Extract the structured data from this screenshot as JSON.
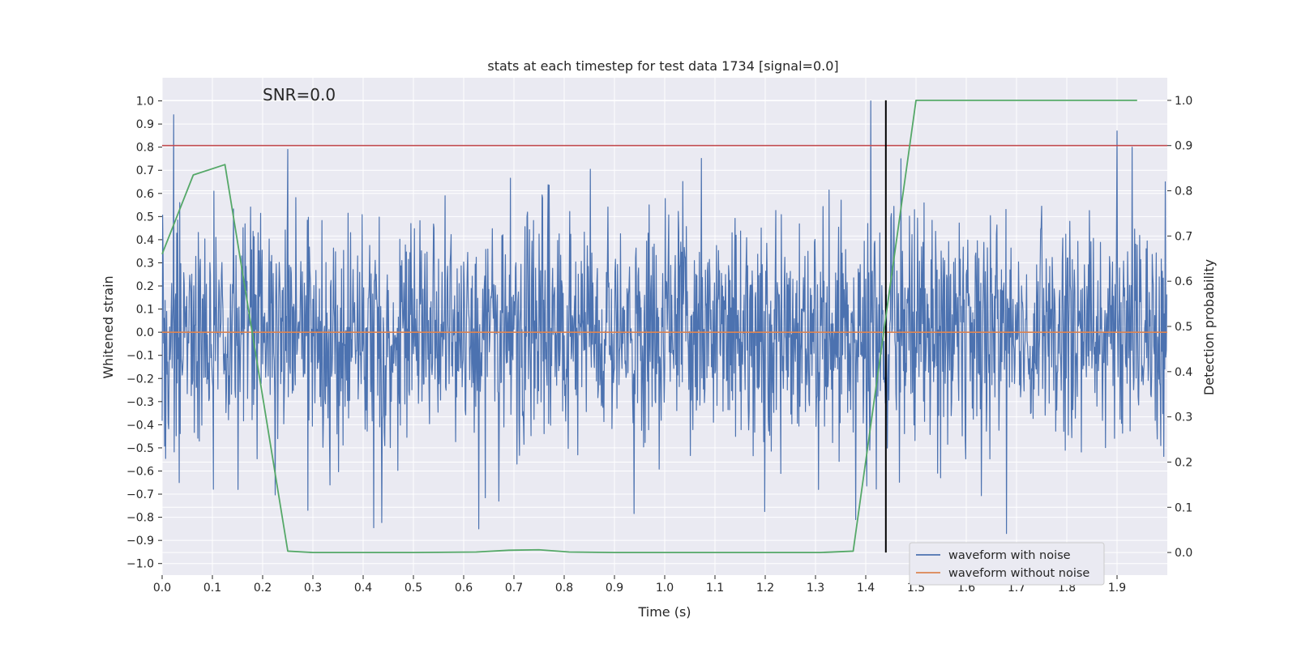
{
  "chart_data": {
    "type": "line",
    "title": "stats at each timestep for test data 1734 [signal=0.0]",
    "annotation": "SNR=0.0",
    "xlabel": "Time (s)",
    "ylabel_left": "Whitened strain",
    "ylabel_right": "Detection probability",
    "xlim": [
      0.0,
      2.0
    ],
    "ylim_left": [
      -1.05,
      1.1
    ],
    "ylim_right": [
      -0.05,
      1.05
    ],
    "x_ticks": [
      "0.0",
      "0.1",
      "0.2",
      "0.3",
      "0.4",
      "0.5",
      "0.6",
      "0.7",
      "0.8",
      "0.9",
      "1.0",
      "1.1",
      "1.2",
      "1.3",
      "1.4",
      "1.5",
      "1.6",
      "1.7",
      "1.8",
      "1.9"
    ],
    "y_ticks_left": [
      "1.0",
      "0.9",
      "0.8",
      "0.7",
      "0.6",
      "0.5",
      "0.4",
      "0.3",
      "0.2",
      "0.1",
      "0.0",
      "−0.1",
      "−0.2",
      "−0.3",
      "−0.4",
      "−0.5",
      "−0.6",
      "−0.7",
      "−0.8",
      "−0.9",
      "−1.0"
    ],
    "y_ticks_right": [
      "1.0",
      "0.9",
      "0.8",
      "0.7",
      "0.6",
      "0.5",
      "0.4",
      "0.3",
      "0.2",
      "0.1",
      "0.0"
    ],
    "grid": true,
    "legend_position": "lower-right",
    "series": [
      {
        "name": "waveform with noise",
        "axis": "left",
        "color": "#4c72b0",
        "description": "whitened noise, approx. zero-mean, std ~0.25, range -1.0 to 1.0",
        "spikes": [
          {
            "x": 0.023,
            "y": 0.94
          },
          {
            "x": 0.034,
            "y": -0.65
          },
          {
            "x": 0.103,
            "y": 0.61
          },
          {
            "x": 0.25,
            "y": 0.79
          },
          {
            "x": 0.29,
            "y": -0.77
          },
          {
            "x": 0.63,
            "y": -0.85
          },
          {
            "x": 0.67,
            "y": -0.73
          },
          {
            "x": 1.38,
            "y": -0.81
          },
          {
            "x": 1.41,
            "y": 1.0
          },
          {
            "x": 1.47,
            "y": 0.75
          },
          {
            "x": 1.68,
            "y": -0.87
          },
          {
            "x": 1.9,
            "y": 0.87
          },
          {
            "x": 1.93,
            "y": 0.8
          }
        ]
      },
      {
        "name": "waveform without noise",
        "axis": "left",
        "color": "#dd8452",
        "x": [
          0.0,
          2.0
        ],
        "y": [
          0.0,
          0.0
        ]
      },
      {
        "name": "detection probability",
        "axis": "right",
        "color": "#55a868",
        "x": [
          0.0,
          0.062,
          0.125,
          0.25,
          0.3,
          0.4,
          0.5,
          0.625,
          0.69,
          0.75,
          0.81,
          0.9,
          1.0,
          1.1,
          1.2,
          1.31,
          1.375,
          1.5,
          1.94
        ],
        "y": [
          0.66,
          0.835,
          0.858,
          0.003,
          0.0,
          0.0,
          0.0,
          0.001,
          0.005,
          0.006,
          0.001,
          0.0,
          0.0,
          0.0,
          0.0,
          0.0,
          0.003,
          1.0,
          1.0
        ]
      }
    ],
    "reference_lines": [
      {
        "orientation": "horizontal",
        "axis": "right",
        "value": 0.9,
        "color": "#c44e52"
      },
      {
        "orientation": "vertical",
        "value": 1.44,
        "y_range": [
          0.0,
          1.0
        ],
        "axis": "right",
        "color": "#000000"
      }
    ]
  },
  "colors": {
    "plot_background": "#eaeaf2",
    "grid": "#ffffff"
  }
}
